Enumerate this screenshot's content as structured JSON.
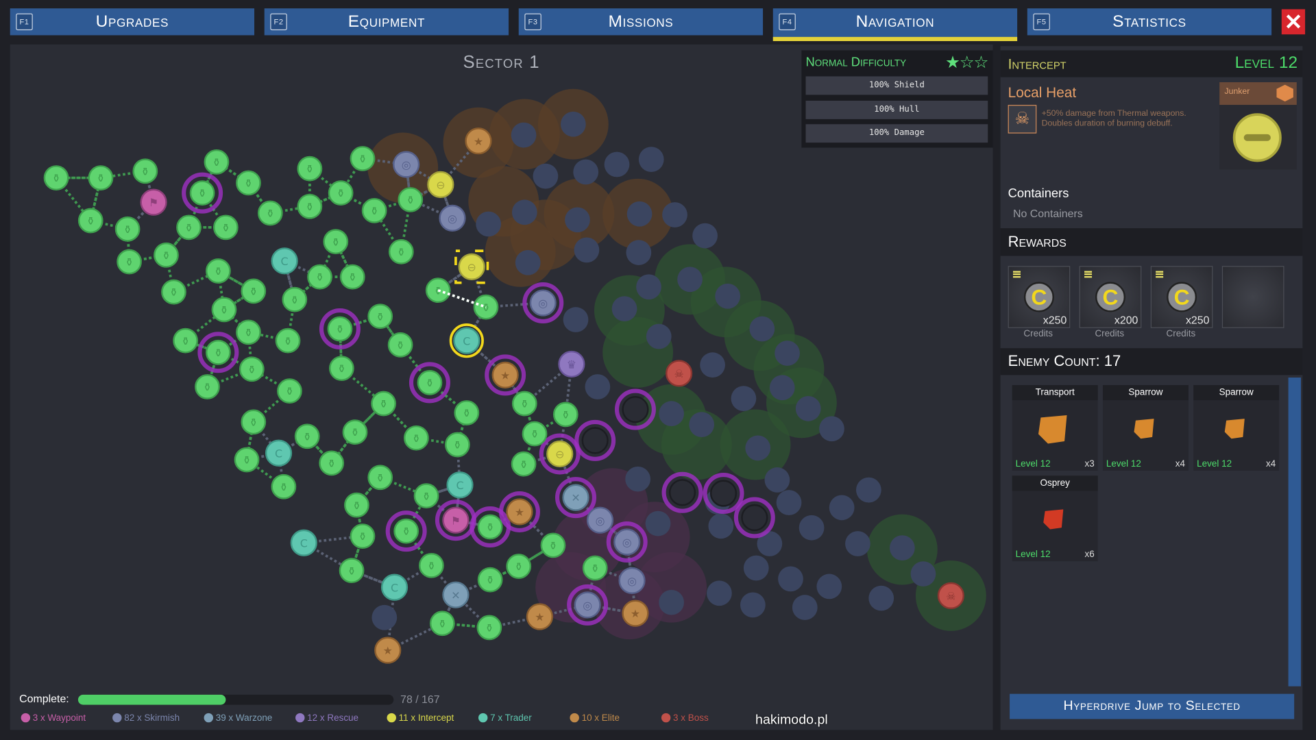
{
  "tabs": [
    {
      "key": "F1",
      "label": "Upgrades"
    },
    {
      "key": "F2",
      "label": "Equipment"
    },
    {
      "key": "F3",
      "label": "Missions"
    },
    {
      "key": "F4",
      "label": "Navigation",
      "active": true
    },
    {
      "key": "F5",
      "label": "Statistics"
    }
  ],
  "close_icon": "x-icon",
  "map": {
    "title": "Sector 1",
    "difficulty": {
      "label": "Normal Difficulty",
      "stars_filled": 1,
      "stars_total": 3,
      "modifiers": [
        "100% Shield",
        "100% Hull",
        "100% Damage"
      ]
    },
    "progress": {
      "label": "Complete:",
      "value": 78,
      "total": 167,
      "text": "78 / 167"
    },
    "legend": [
      {
        "label": "3 x Waypoint",
        "color": "#c75fa8"
      },
      {
        "label": "82 x Skirmish",
        "color": "#7c86ad"
      },
      {
        "label": "39 x Warzone",
        "color": "#7fa0b8"
      },
      {
        "label": "12 x Rescue",
        "color": "#8f78c0"
      },
      {
        "label": "11 x Intercept",
        "color": "#d9d84a"
      },
      {
        "label": "7 x Trader",
        "color": "#5fc7b0"
      },
      {
        "label": "10 x Elite",
        "color": "#c08a4a"
      },
      {
        "label": "3 x Boss",
        "color": "#c0514a"
      }
    ],
    "watermark": "hakimodo.pl"
  },
  "mission": {
    "type": "Intercept",
    "level": "Level 12",
    "modifier": {
      "name": "Local Heat",
      "icon": "skull-icon",
      "description": [
        "+50% damage from Thermal weapons.",
        "Doubles duration of burning debuff."
      ]
    },
    "faction": {
      "name": "Junker",
      "icon": "junker-faction-icon"
    },
    "containers_title": "Containers",
    "containers_text": "No Containers",
    "rewards_title": "Rewards",
    "rewards": [
      {
        "qty": "x250",
        "label": "Credits"
      },
      {
        "qty": "x200",
        "label": "Credits"
      },
      {
        "qty": "x250",
        "label": "Credits"
      }
    ],
    "enemy_title": "Enemy Count: 17",
    "enemies": [
      {
        "name": "Transport",
        "level": "Level 12",
        "count": "x3"
      },
      {
        "name": "Sparrow",
        "level": "Level 12",
        "count": "x4"
      },
      {
        "name": "Sparrow",
        "level": "Level 12",
        "count": "x4"
      },
      {
        "name": "Osprey",
        "level": "Level 12",
        "count": "x6"
      }
    ],
    "jump_button": "Hyperdrive Jump to Selected"
  },
  "colors": {
    "accent": "#2f5a94",
    "active_underline": "#e3d13a",
    "completed": "#5fd46f",
    "level": "#4ddc6a",
    "intercept": "#d4d46a"
  }
}
